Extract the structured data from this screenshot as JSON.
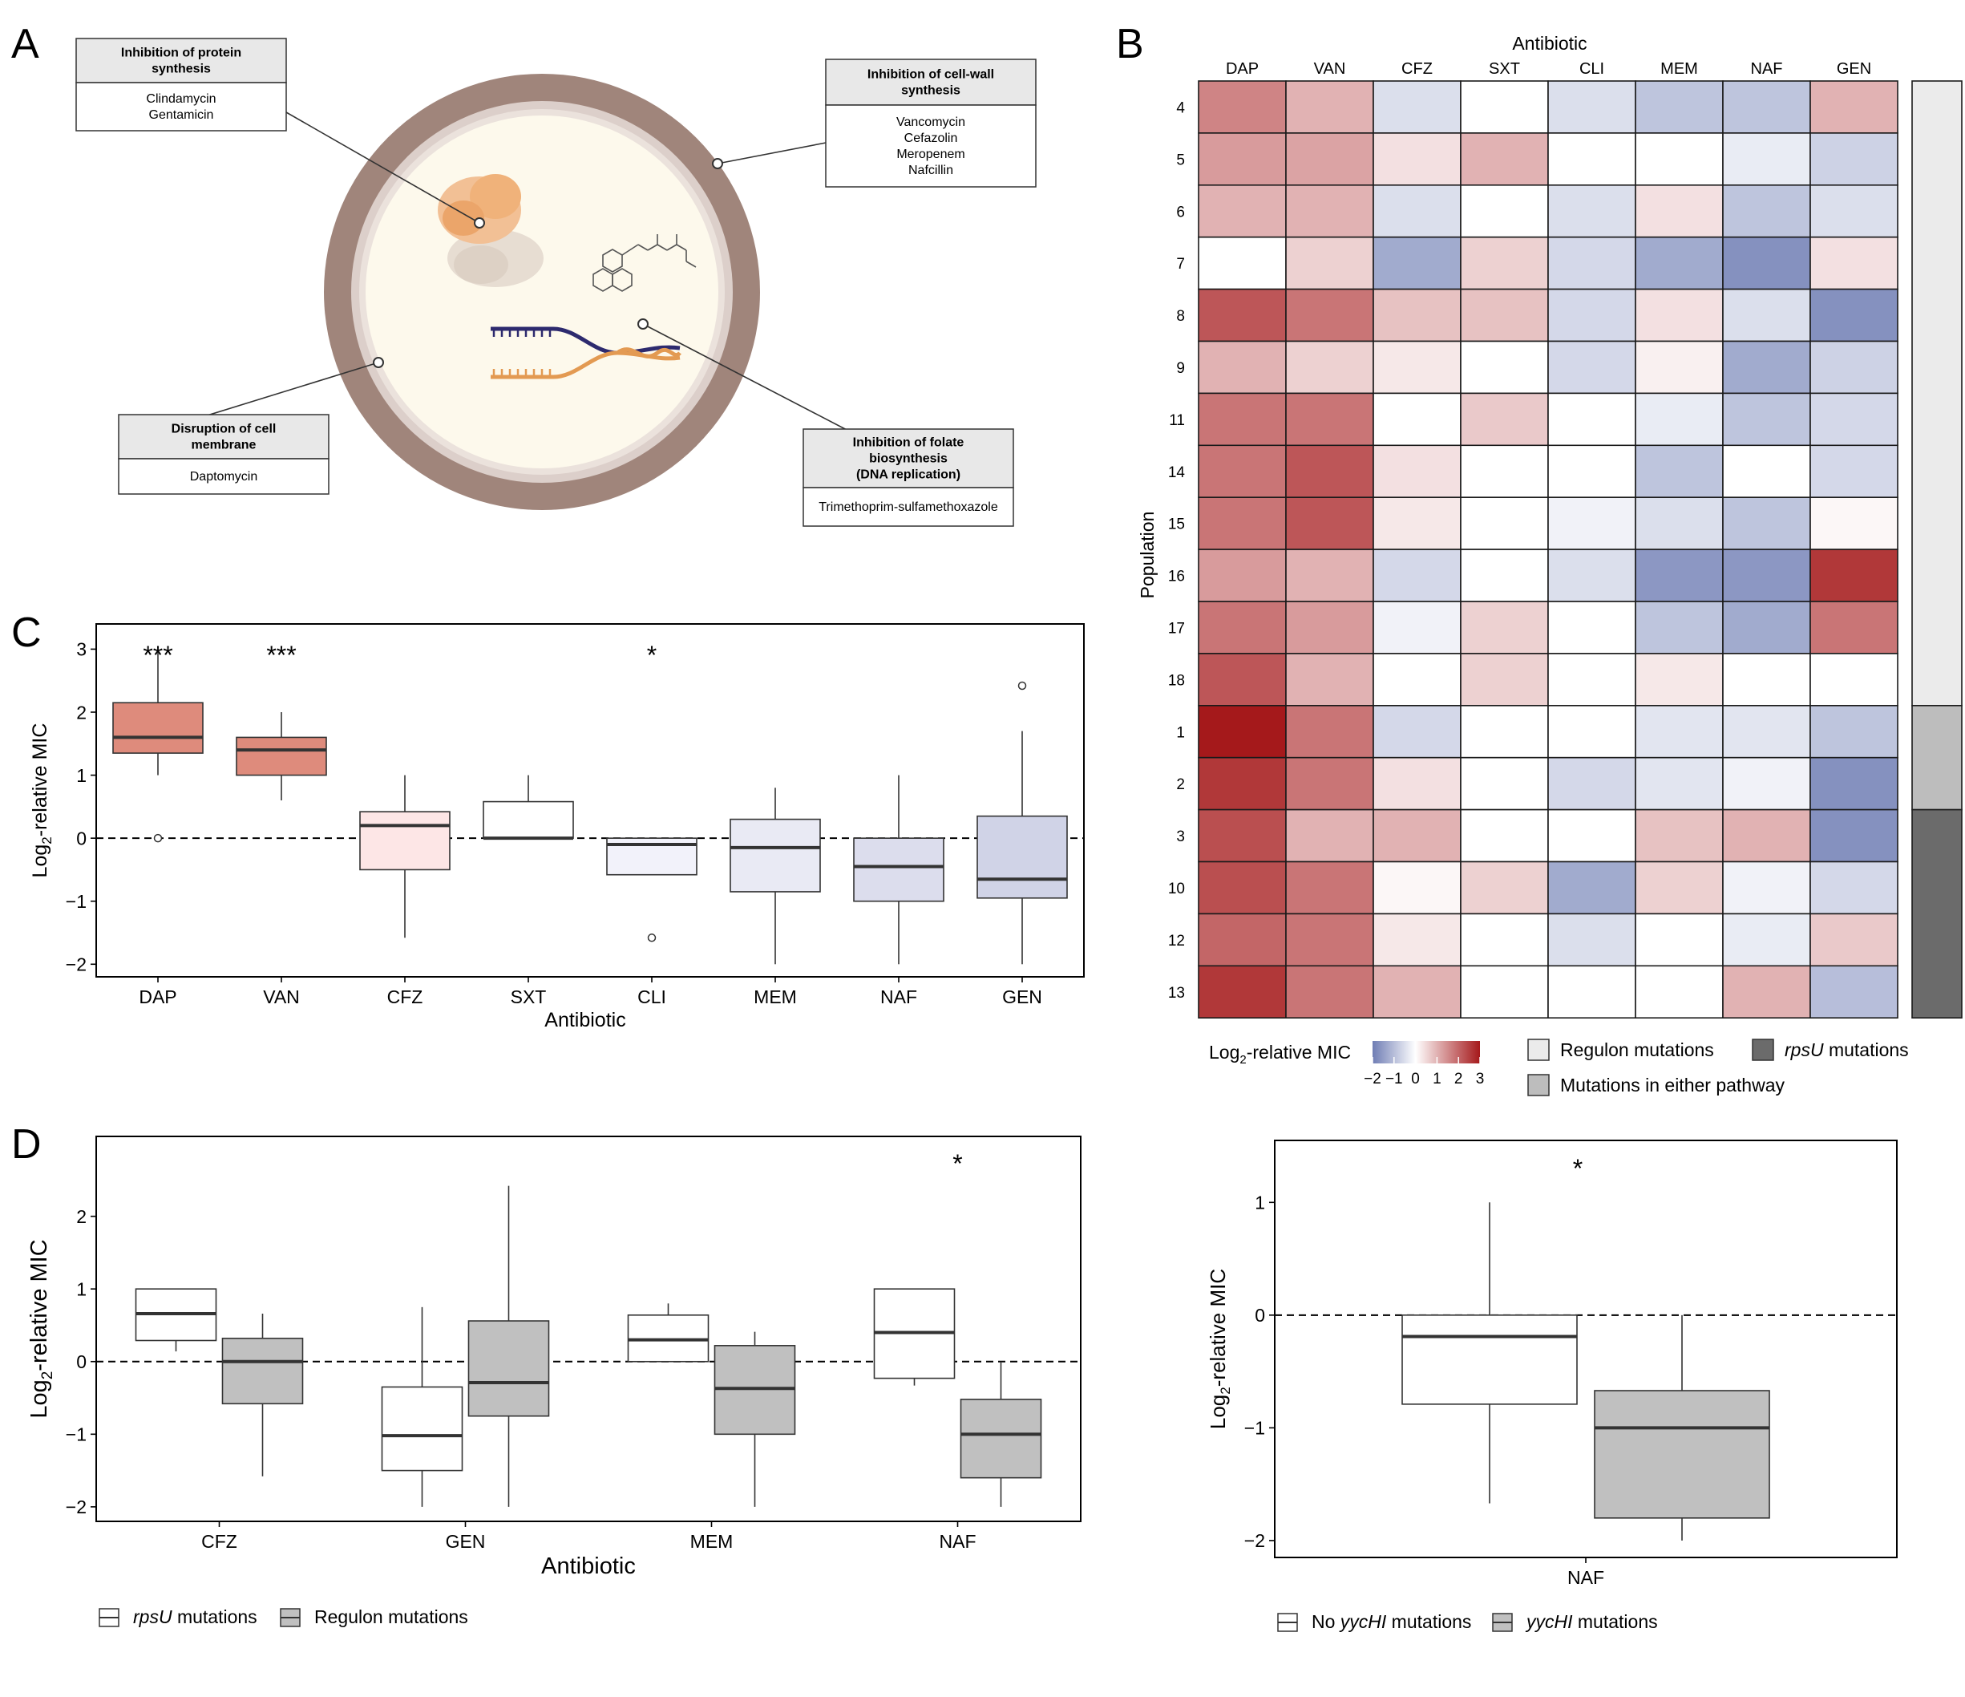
{
  "panel_labels": {
    "A": "A",
    "B": "B",
    "C": "C",
    "D": "D"
  },
  "panel_a": {
    "callouts": [
      {
        "key": "protein",
        "title": [
          "Inhibition of protein",
          "synthesis"
        ],
        "drugs": [
          "Clindamycin",
          "Gentamicin"
        ]
      },
      {
        "key": "cellwall",
        "title": [
          "Inhibition of cell-wall",
          "synthesis"
        ],
        "drugs": [
          "Vancomycin",
          "Cefazolin",
          "Meropenem",
          "Nafcillin"
        ]
      },
      {
        "key": "membrane",
        "title": [
          "Disruption of cell",
          "membrane"
        ],
        "drugs": [
          "Daptomycin"
        ]
      },
      {
        "key": "folate",
        "title": [
          "Inhibition of folate",
          "biosynthesis",
          "(DNA replication)"
        ],
        "drugs": [
          "Trimethoprim-sulfamethoxazole"
        ]
      }
    ],
    "colors": {
      "wall": "#a0857b",
      "wall_inner": "#dccfca",
      "cytoplasm": "#fdf9ec",
      "ribosome": "#f0b27a",
      "ribosome_small": "#e7ddd2",
      "dna_strand1": "#2d2a6e",
      "dna_strand2": "#e39a52"
    }
  },
  "chart_data": [
    {
      "panel": "B",
      "type": "heatmap",
      "title": "Antibiotic",
      "ylabel": "Population",
      "columns": [
        "DAP",
        "VAN",
        "CFZ",
        "SXT",
        "CLI",
        "MEM",
        "NAF",
        "GEN"
      ],
      "rows": [
        "4",
        "5",
        "6",
        "7",
        "8",
        "9",
        "11",
        "14",
        "15",
        "16",
        "17",
        "18",
        "1",
        "2",
        "3",
        "10",
        "12",
        "13"
      ],
      "values": [
        [
          1.6,
          1.0,
          -0.5,
          0.0,
          -0.5,
          -0.9,
          -0.9,
          1.0
        ],
        [
          1.3,
          1.2,
          0.4,
          1.0,
          0.0,
          0.0,
          -0.3,
          -0.7
        ],
        [
          1.0,
          1.0,
          -0.5,
          0.0,
          -0.5,
          0.4,
          -0.9,
          -0.5
        ],
        [
          0.0,
          0.6,
          -1.3,
          0.6,
          -0.6,
          -1.3,
          -1.7,
          0.4
        ],
        [
          2.2,
          1.8,
          0.8,
          0.8,
          -0.6,
          0.4,
          -0.5,
          -1.7
        ],
        [
          1.0,
          0.6,
          0.3,
          0.0,
          -0.6,
          0.2,
          -1.3,
          -0.7
        ],
        [
          1.8,
          1.8,
          0.0,
          0.7,
          0.0,
          -0.3,
          -0.9,
          -0.6
        ],
        [
          1.8,
          2.2,
          0.4,
          0.0,
          0.0,
          -0.9,
          0.0,
          -0.6
        ],
        [
          1.8,
          2.2,
          0.3,
          0.0,
          -0.2,
          -0.5,
          -0.9,
          0.1
        ],
        [
          1.3,
          1.0,
          -0.6,
          0.0,
          -0.5,
          -1.6,
          -1.6,
          2.6
        ],
        [
          1.8,
          1.3,
          -0.2,
          0.6,
          0.0,
          -0.9,
          -1.3,
          1.8
        ],
        [
          2.2,
          1.0,
          0.0,
          0.6,
          0.0,
          0.3,
          0.0,
          0.0
        ],
        [
          3.0,
          1.8,
          -0.6,
          0.0,
          0.0,
          -0.4,
          -0.4,
          -0.9
        ],
        [
          2.6,
          1.8,
          0.4,
          0.0,
          -0.6,
          -0.4,
          -0.2,
          -1.7
        ],
        [
          2.3,
          1.0,
          1.0,
          0.0,
          0.0,
          0.8,
          1.0,
          -1.7
        ],
        [
          2.3,
          1.8,
          0.1,
          0.6,
          -1.3,
          0.6,
          -0.2,
          -0.6
        ],
        [
          2.0,
          1.8,
          0.3,
          0.0,
          -0.5,
          0.0,
          -0.3,
          0.7
        ],
        [
          2.6,
          1.8,
          1.0,
          0.0,
          0.0,
          0.0,
          1.0,
          -1.0
        ]
      ],
      "row_group": [
        "reg",
        "reg",
        "reg",
        "reg",
        "reg",
        "reg",
        "reg",
        "reg",
        "reg",
        "reg",
        "reg",
        "reg",
        "either",
        "either",
        "rpsu",
        "rpsu",
        "rpsu",
        "rpsu"
      ],
      "color_scale": {
        "min": -2,
        "max": 3,
        "low": "#6f7db4",
        "mid": "#ffffff",
        "high": "#a5191b",
        "ticks": [
          "−2",
          "−1",
          "0",
          "1",
          "2",
          "3"
        ]
      },
      "colorbar_label_main": "Log",
      "colorbar_label_sub": "2",
      "colorbar_label_rest": "-relative MIC",
      "group_legend": [
        {
          "key": "reg",
          "label": "Regulon mutations",
          "color": "#ebebeb"
        },
        {
          "key": "rpsu",
          "label": "rpsU",
          "label_rest": " mutations",
          "color": "#6b6b6b"
        },
        {
          "key": "either",
          "label": "Mutations in either pathway",
          "color": "#bdbdbd"
        }
      ]
    },
    {
      "panel": "C",
      "type": "box",
      "xlabel": "Antibiotic",
      "ylabel_main": "Log",
      "ylabel_sub": "2",
      "ylabel_rest": "-relative MIC",
      "ylim": [
        -2.2,
        3.4
      ],
      "yticks": [
        -2,
        -1,
        0,
        1,
        2,
        3
      ],
      "categories": [
        "DAP",
        "VAN",
        "CFZ",
        "SXT",
        "CLI",
        "MEM",
        "NAF",
        "GEN"
      ],
      "boxes": [
        {
          "q1": 1.35,
          "median": 1.6,
          "q3": 2.15,
          "lo": 1.0,
          "hi": 3.0,
          "outliers": [
            0.0
          ],
          "color": "#de8b7c",
          "sig": "***"
        },
        {
          "q1": 1.0,
          "median": 1.4,
          "q3": 1.6,
          "lo": 0.6,
          "hi": 2.0,
          "outliers": [],
          "color": "#de8b7c",
          "sig": "***"
        },
        {
          "q1": -0.5,
          "median": 0.2,
          "q3": 0.42,
          "lo": -1.58,
          "hi": 1.0,
          "outliers": [],
          "color": "#fde6e6",
          "sig": ""
        },
        {
          "q1": 0.0,
          "median": 0.0,
          "q3": 0.58,
          "lo": 0.0,
          "hi": 1.0,
          "outliers": [],
          "color": "#ffffff",
          "sig": ""
        },
        {
          "q1": -0.58,
          "median": -0.1,
          "q3": 0.0,
          "lo": -0.58,
          "hi": 0.0,
          "outliers": [
            -1.58
          ],
          "color": "#f2f2fa",
          "sig": "*"
        },
        {
          "q1": -0.85,
          "median": -0.15,
          "q3": 0.3,
          "lo": -2.0,
          "hi": 0.8,
          "outliers": [],
          "color": "#e9eaf4",
          "sig": ""
        },
        {
          "q1": -1.0,
          "median": -0.45,
          "q3": 0.0,
          "lo": -2.0,
          "hi": 1.0,
          "outliers": [],
          "color": "#dcdded",
          "sig": ""
        },
        {
          "q1": -0.95,
          "median": -0.65,
          "q3": 0.35,
          "lo": -2.0,
          "hi": 1.7,
          "outliers": [
            2.42
          ],
          "color": "#d0d3e7",
          "sig": ""
        }
      ]
    },
    {
      "panel": "D-left",
      "type": "box",
      "xlabel": "Antibiotic",
      "ylabel_main": "Log",
      "ylabel_sub": "2",
      "ylabel_rest": "-relative MIC",
      "ylim": [
        -2.2,
        3.1
      ],
      "yticks": [
        -2,
        -1,
        0,
        1,
        2
      ],
      "categories": [
        "CFZ",
        "GEN",
        "MEM",
        "NAF"
      ],
      "series": [
        {
          "name": "rpsU",
          "name_rest": " mutations",
          "color": "#ffffff",
          "boxes": [
            {
              "q1": 0.29,
              "median": 0.66,
              "q3": 1.0,
              "lo": 0.14,
              "hi": 1.0
            },
            {
              "q1": -1.5,
              "median": -1.02,
              "q3": -0.35,
              "lo": -2.0,
              "hi": 0.75
            },
            {
              "q1": 0.0,
              "median": 0.3,
              "q3": 0.64,
              "lo": 0.0,
              "hi": 0.8
            },
            {
              "q1": -0.23,
              "median": 0.4,
              "q3": 1.0,
              "lo": -0.33,
              "hi": 1.0
            }
          ]
        },
        {
          "name": "Regulon mutations",
          "name_rest": "",
          "color": "#c0c0c0",
          "boxes": [
            {
              "q1": -0.58,
              "median": 0.0,
              "q3": 0.32,
              "lo": -1.58,
              "hi": 0.66
            },
            {
              "q1": -0.75,
              "median": -0.29,
              "q3": 0.56,
              "lo": -2.0,
              "hi": 2.42
            },
            {
              "q1": -1.0,
              "median": -0.37,
              "q3": 0.22,
              "lo": -2.0,
              "hi": 0.41
            },
            {
              "q1": -1.6,
              "median": -1.0,
              "q3": -0.52,
              "lo": -2.0,
              "hi": 0.0
            }
          ]
        }
      ],
      "significance": [
        {
          "category": "NAF",
          "label": "*"
        }
      ]
    },
    {
      "panel": "D-right",
      "type": "box",
      "ylabel_main": "Log",
      "ylabel_sub": "2",
      "ylabel_rest": "-relative MIC",
      "ylim": [
        -2.15,
        1.55
      ],
      "yticks": [
        -2,
        -1,
        0,
        1
      ],
      "categories": [
        "NAF"
      ],
      "series": [
        {
          "name": "No ",
          "name_it": "yycHI",
          "name_rest": " mutations",
          "color": "#ffffff",
          "boxes": [
            {
              "q1": -0.79,
              "median": -0.19,
              "q3": 0.0,
              "lo": -1.67,
              "hi": 1.0
            }
          ]
        },
        {
          "name": "",
          "name_it": "yycHI",
          "name_rest": " mutations",
          "color": "#c0c0c0",
          "boxes": [
            {
              "q1": -1.8,
              "median": -1.0,
              "q3": -0.67,
              "lo": -2.0,
              "hi": 0.0
            }
          ]
        }
      ],
      "significance": [
        {
          "category": "NAF",
          "label": "*"
        }
      ]
    }
  ]
}
